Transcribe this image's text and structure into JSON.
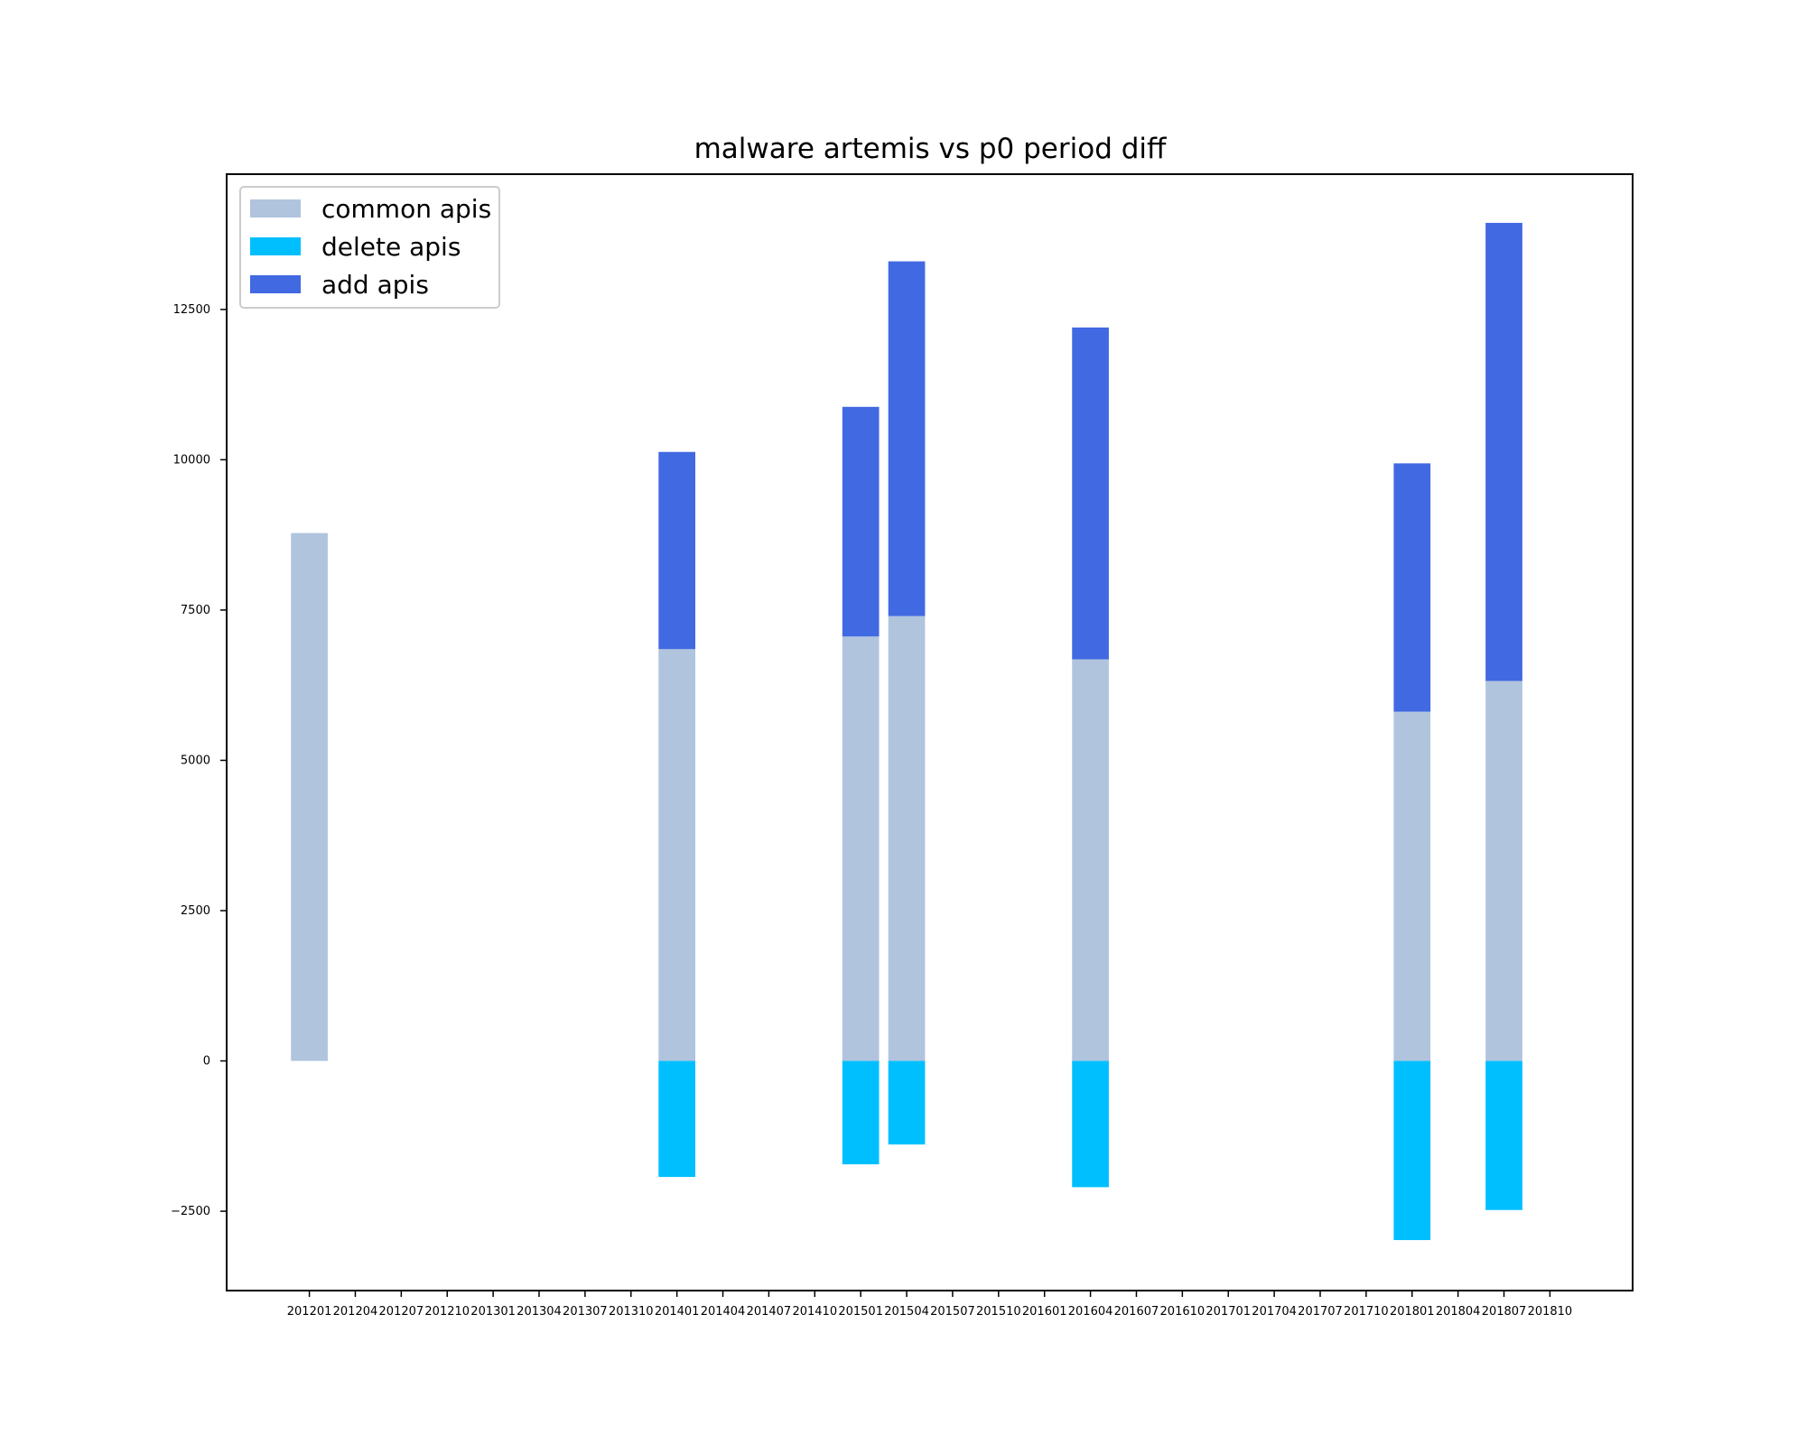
{
  "chart_data": {
    "type": "bar",
    "stacked": true,
    "title": "malware artemis vs p0 period diff",
    "xlabel": "",
    "ylabel": "",
    "categories": [
      "201201",
      "201204",
      "201207",
      "201210",
      "201301",
      "201304",
      "201307",
      "201310",
      "201401",
      "201404",
      "201407",
      "201410",
      "201501",
      "201504",
      "201507",
      "201510",
      "201601",
      "201604",
      "201607",
      "201610",
      "201701",
      "201704",
      "201707",
      "201710",
      "201801",
      "201804",
      "201807",
      "201810"
    ],
    "ylim": [
      -3820,
      14750
    ],
    "yticks": [
      -2500,
      0,
      2500,
      5000,
      7500,
      10000,
      12500
    ],
    "xlim": [
      -1.8,
      28.8
    ],
    "legend_position": "upper-left",
    "grid": false,
    "series": [
      {
        "name": "common apis",
        "color": "#b0c4de",
        "values": [
          8780,
          0,
          0,
          0,
          0,
          0,
          0,
          0,
          6850,
          0,
          0,
          0,
          7060,
          7400,
          0,
          0,
          0,
          6680,
          0,
          0,
          0,
          0,
          0,
          0,
          5810,
          0,
          6320,
          0
        ]
      },
      {
        "name": "delete apis",
        "color": "#00bfff",
        "values": [
          0,
          0,
          0,
          0,
          0,
          0,
          0,
          0,
          -1930,
          0,
          0,
          0,
          -1720,
          -1390,
          0,
          0,
          0,
          -2100,
          0,
          0,
          0,
          0,
          0,
          0,
          -2980,
          0,
          -2480,
          0
        ]
      },
      {
        "name": "add apis",
        "color": "#4169e1",
        "values": [
          0,
          0,
          0,
          0,
          0,
          0,
          0,
          0,
          3280,
          0,
          0,
          0,
          3820,
          5900,
          0,
          0,
          0,
          5520,
          0,
          0,
          0,
          0,
          0,
          0,
          4130,
          0,
          7620,
          0
        ]
      }
    ]
  }
}
